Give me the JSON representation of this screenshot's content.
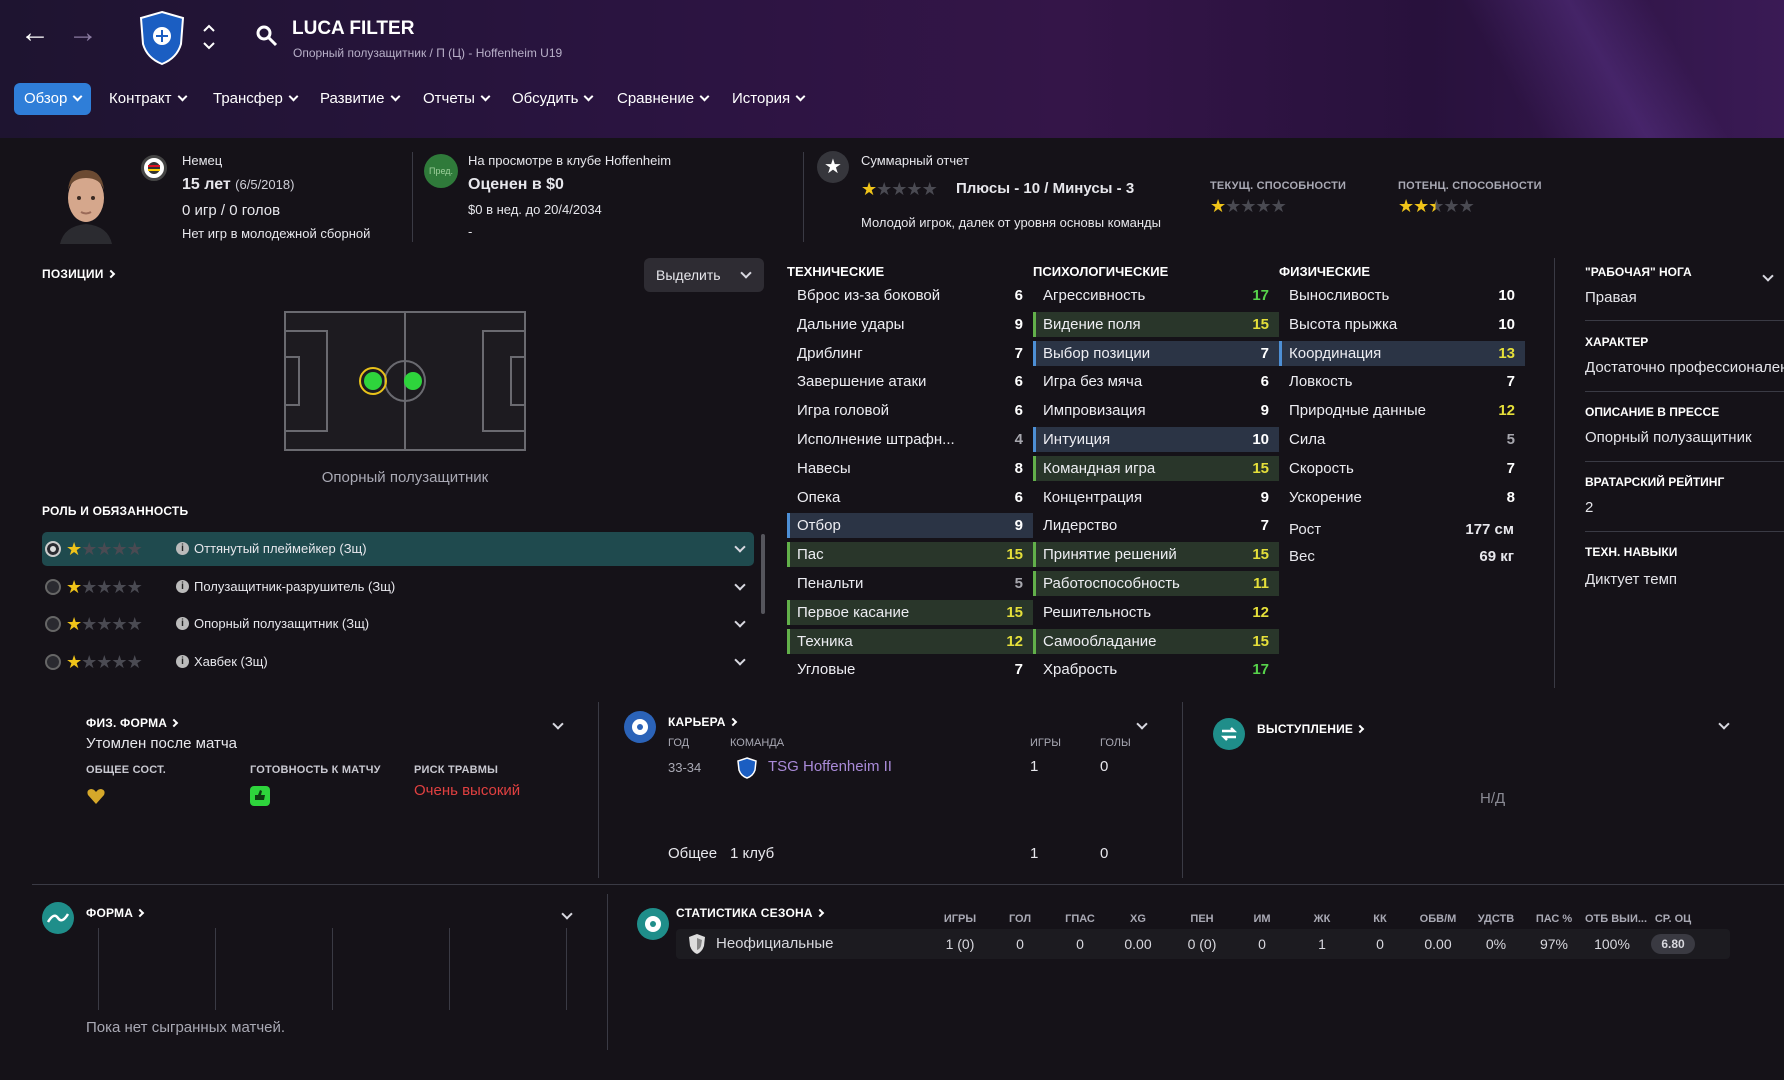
{
  "header": {
    "player_name": "LUCA FILTER",
    "subtitle": "Опорный полузащитник / П (Ц) - Hoffenheim U19"
  },
  "tabs": [
    {
      "label": "Обзор",
      "active": true
    },
    {
      "label": "Контракт"
    },
    {
      "label": "Трансфер"
    },
    {
      "label": "Развитие"
    },
    {
      "label": "Отчеты"
    },
    {
      "label": "Обсудить"
    },
    {
      "label": "Сравнение"
    },
    {
      "label": "История"
    }
  ],
  "info": {
    "nationality": "Немец",
    "age": "15 лет",
    "dob": "(6/5/2018)",
    "caps": "0 игр / 0 голов",
    "youth_team": "Нет игр в молодежной сборной",
    "club_badge_text": "Пред.",
    "trial": "На просмотре в клубе Hoffenheim",
    "value": "Оценен в $0",
    "wage": "$0 в нед. до 20/4/2034",
    "dash": "-",
    "report_title": "Суммарный отчет",
    "report_pros_cons": "Плюсы - 10 / Минусы - 3",
    "report_summary": "Молодой игрок, далек от уровня основы команды",
    "ca_label": "ТЕКУЩ. СПОСОБНОСТИ",
    "pa_label": "ПОТЕНЦ. СПОСОБНОСТИ",
    "report_stars": 1,
    "ca_stars": 1,
    "pa_stars": 2.5
  },
  "positions": {
    "title": "ПОЗИЦИИ",
    "highlight_label": "Выделить",
    "position_label": "Опорный полузащитник"
  },
  "roles": {
    "title": "РОЛЬ И ОБЯЗАННОСТЬ",
    "items": [
      {
        "label": "Оттянутый плеймейкер (Зщ)",
        "stars": 1,
        "selected": true
      },
      {
        "label": "Полузащитник-разрушитель (Зщ)",
        "stars": 1
      },
      {
        "label": "Опорный полузащитник (Зщ)",
        "stars": 1
      },
      {
        "label": "Хавбек (Зщ)",
        "stars": 1
      }
    ]
  },
  "attributes": {
    "technical_title": "ТЕХНИЧЕСКИЕ",
    "mental_title": "ПСИХОЛОГИЧЕСКИЕ",
    "physical_title": "ФИЗИЧЕСКИЕ",
    "technical": [
      {
        "name": "Вброс из-за боковой",
        "value": "6"
      },
      {
        "name": "Дальние удары",
        "value": "9"
      },
      {
        "name": "Дриблинг",
        "value": "7"
      },
      {
        "name": "Завершение атаки",
        "value": "6"
      },
      {
        "name": "Игра головой",
        "value": "6"
      },
      {
        "name": "Исполнение штрафн...",
        "value": "4"
      },
      {
        "name": "Навесы",
        "value": "8"
      },
      {
        "name": "Опека",
        "value": "6"
      },
      {
        "name": "Отбор",
        "value": "9"
      },
      {
        "name": "Пас",
        "value": "15"
      },
      {
        "name": "Пенальти",
        "value": "5"
      },
      {
        "name": "Первое касание",
        "value": "15"
      },
      {
        "name": "Техника",
        "value": "12"
      },
      {
        "name": "Угловые",
        "value": "7"
      }
    ],
    "mental": [
      {
        "name": "Агрессивность",
        "value": "17"
      },
      {
        "name": "Видение поля",
        "value": "15"
      },
      {
        "name": "Выбор позиции",
        "value": "7"
      },
      {
        "name": "Игра без мяча",
        "value": "6"
      },
      {
        "name": "Импровизация",
        "value": "9"
      },
      {
        "name": "Интуиция",
        "value": "10"
      },
      {
        "name": "Командная игра",
        "value": "15"
      },
      {
        "name": "Концентрация",
        "value": "9"
      },
      {
        "name": "Лидерство",
        "value": "7"
      },
      {
        "name": "Принятие решений",
        "value": "15"
      },
      {
        "name": "Работоспособность",
        "value": "11"
      },
      {
        "name": "Решительность",
        "value": "12"
      },
      {
        "name": "Самообладание",
        "value": "15"
      },
      {
        "name": "Храбрость",
        "value": "17"
      }
    ],
    "physical": [
      {
        "name": "Выносливость",
        "value": "10"
      },
      {
        "name": "Высота прыжка",
        "value": "10"
      },
      {
        "name": "Координация",
        "value": "13"
      },
      {
        "name": "Ловкость",
        "value": "7"
      },
      {
        "name": "Природные данные",
        "value": "12"
      },
      {
        "name": "Сила",
        "value": "5"
      },
      {
        "name": "Скорость",
        "value": "7"
      },
      {
        "name": "Ускорение",
        "value": "8"
      }
    ],
    "height_label": "Рост",
    "height_value": "177 см",
    "weight_label": "Вес",
    "weight_value": "69 кг"
  },
  "right_panel": {
    "foot_title": "\"РАБОЧАЯ\" НОГА",
    "foot_value": "Правая",
    "personality_title": "ХАРАКТЕР",
    "personality_value": "Достаточно профессионален",
    "media_title": "ОПИСАНИЕ В ПРЕССЕ",
    "media_value": "Опорный полузащитник",
    "gk_title": "ВРАТАРСКИЙ РЕЙТИНГ",
    "gk_value": "2",
    "traits_title": "ТЕХН. НАВЫКИ",
    "traits_value": "Диктует темп"
  },
  "fitness": {
    "title": "ФИЗ. ФОРМА",
    "status": "Утомлен после матча",
    "condition_label": "ОБЩЕЕ СОСТ.",
    "sharpness_label": "ГОТОВНОСТЬ К МАТЧУ",
    "injury_label": "РИСК ТРАВМЫ",
    "injury_value": "Очень высокий"
  },
  "career": {
    "title": "КАРЬЕРА",
    "col_year": "ГОД",
    "col_team": "КОМАНДА",
    "col_apps": "ИГРЫ",
    "col_goals": "ГОЛЫ",
    "rows": [
      {
        "year": "33-34",
        "team": "TSG Hoffenheim II",
        "apps": "1",
        "goals": "0"
      }
    ],
    "total_label": "Общее",
    "total_clubs": "1 клуб",
    "total_apps": "1",
    "total_goals": "0"
  },
  "performance": {
    "title": "ВЫСТУПЛЕНИЕ",
    "na": "Н/Д"
  },
  "form": {
    "title": "ФОРМА",
    "empty": "Пока нет сыгранных матчей."
  },
  "season_stats": {
    "title": "СТАТИСТИКА СЕЗОНА",
    "headers": [
      "ИГРЫ",
      "ГОЛ",
      "ГПАС",
      "XG",
      "ПЕН",
      "ИМ",
      "ЖК",
      "КК",
      "ОБВ/М",
      "УДСТВ",
      "ПАС %",
      "ОТБ ВЫИ...",
      "СР. ОЦ"
    ],
    "row_label": "Неофициальные",
    "values": [
      "1 (0)",
      "0",
      "0",
      "0.00",
      "0 (0)",
      "0",
      "1",
      "0",
      "0.00",
      "0%",
      "97%",
      "100%",
      "6.80"
    ]
  },
  "colors": {
    "accent": "#2f7ed8",
    "good": "#62b04a",
    "injury": "#e04040",
    "highlight_blue": "#4d8fd5"
  }
}
